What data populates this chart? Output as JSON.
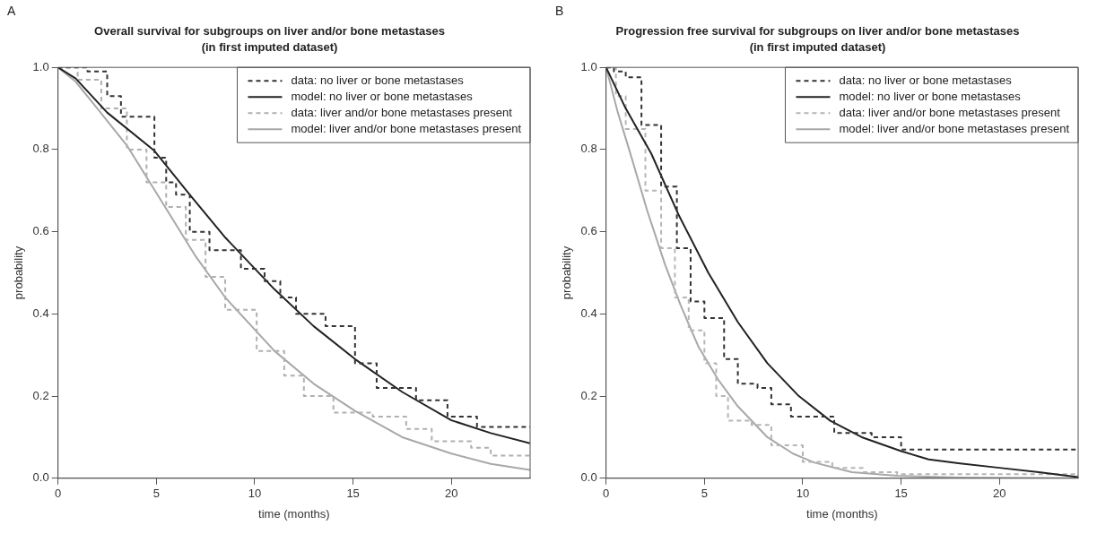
{
  "chart_data": [
    {
      "type": "line",
      "title": "Overall survival for subgroups on liver and/or bone metastases",
      "subtitle": "(in first imputed dataset)",
      "xlabel": "time (months)",
      "ylabel": "probability",
      "annotations": [
        "A"
      ],
      "legend": "top right",
      "grid": false,
      "xlim": [
        0,
        24
      ],
      "ylim": [
        0,
        1
      ],
      "xticks": [
        0,
        5,
        10,
        15,
        20
      ],
      "yticks": [
        {
          "value": 0,
          "label": "0.0"
        },
        {
          "value": 0.2,
          "label": "0.2"
        },
        {
          "value": 0.4,
          "label": "0.4"
        },
        {
          "value": 0.6,
          "label": "0.6"
        },
        {
          "value": 0.8,
          "label": "0.8"
        },
        {
          "value": 1,
          "label": "1.0"
        }
      ],
      "series": [
        {
          "name": "data: no liver or bone metastases",
          "type": "step",
          "line_style": "dashed",
          "color": "#333333",
          "x": [
            0,
            1.5,
            2.5,
            3.2,
            4.9,
            5.5,
            6,
            6.7,
            7.7,
            9.3,
            10.5,
            11.3,
            12.1,
            13.6,
            15.1,
            16.2,
            18.2,
            19.8,
            21.3,
            24
          ],
          "values": [
            1,
            0.99,
            0.93,
            0.88,
            0.78,
            0.72,
            0.69,
            0.6,
            0.555,
            0.51,
            0.48,
            0.44,
            0.4,
            0.37,
            0.28,
            0.22,
            0.19,
            0.15,
            0.125,
            0.125
          ]
        },
        {
          "name": "model: no liver or bone metastases",
          "type": "line",
          "line_style": "solid",
          "color": "#222222",
          "x": [
            0,
            0.9,
            2.5,
            4.9,
            6.7,
            8.5,
            11,
            13,
            15.1,
            17.5,
            20,
            22,
            24
          ],
          "values": [
            1,
            0.973,
            0.89,
            0.797,
            0.69,
            0.586,
            0.46,
            0.37,
            0.29,
            0.21,
            0.141,
            0.11,
            0.085
          ]
        },
        {
          "name": "data: liver and/or bone metastases present",
          "type": "step",
          "line_style": "dashed",
          "color": "#b0b0b0",
          "x": [
            0,
            1,
            2.2,
            3.5,
            4.5,
            5.5,
            6.5,
            7.5,
            8.5,
            10.1,
            11.5,
            12.5,
            14,
            16,
            17.7,
            19,
            21,
            22,
            24
          ],
          "values": [
            1,
            0.97,
            0.9,
            0.8,
            0.72,
            0.66,
            0.58,
            0.49,
            0.41,
            0.31,
            0.25,
            0.2,
            0.16,
            0.15,
            0.12,
            0.09,
            0.074,
            0.055,
            0.05
          ]
        },
        {
          "name": "model: liver and/or bone metastases present",
          "type": "line",
          "line_style": "solid",
          "color": "#a8a8a8",
          "x": [
            0,
            0.9,
            2,
            3.5,
            5.5,
            7,
            8.5,
            11,
            13,
            15.1,
            17.5,
            20,
            22,
            24
          ],
          "values": [
            1,
            0.965,
            0.9,
            0.81,
            0.656,
            0.54,
            0.44,
            0.31,
            0.23,
            0.164,
            0.1,
            0.06,
            0.035,
            0.02
          ]
        }
      ]
    },
    {
      "type": "line",
      "title": "Progression free survival for subgroups on liver and/or bone metastases",
      "subtitle": "(in first imputed dataset)",
      "xlabel": "time (months)",
      "ylabel": "probability",
      "annotations": [
        "B"
      ],
      "legend": "top right",
      "grid": false,
      "xlim": [
        0,
        24
      ],
      "ylim": [
        0,
        1
      ],
      "xticks": [
        0,
        5,
        10,
        15,
        20
      ],
      "yticks": [
        {
          "value": 0,
          "label": "0.0"
        },
        {
          "value": 0.2,
          "label": "0.2"
        },
        {
          "value": 0.4,
          "label": "0.4"
        },
        {
          "value": 0.6,
          "label": "0.6"
        },
        {
          "value": 0.8,
          "label": "0.8"
        },
        {
          "value": 1,
          "label": "1.0"
        }
      ],
      "series": [
        {
          "name": "data: no liver or bone metastases",
          "type": "step",
          "line_style": "dashed",
          "color": "#333333",
          "x": [
            0,
            0.4,
            1,
            1.8,
            2.8,
            3.6,
            4.3,
            5,
            6,
            6.7,
            7.7,
            8.4,
            9.4,
            10.8,
            11.6,
            13.5,
            15,
            24
          ],
          "values": [
            1,
            0.99,
            0.976,
            0.86,
            0.71,
            0.56,
            0.43,
            0.39,
            0.29,
            0.23,
            0.22,
            0.18,
            0.15,
            0.15,
            0.11,
            0.1,
            0.07,
            0.07
          ]
        },
        {
          "name": "model: no liver or bone metastases",
          "type": "line",
          "line_style": "solid",
          "color": "#222222",
          "x": [
            0,
            1,
            2.3,
            3.7,
            5.2,
            6.7,
            8.2,
            9.8,
            11.4,
            13,
            15,
            16.4,
            18,
            19.9,
            22,
            24
          ],
          "values": [
            1,
            0.9,
            0.79,
            0.64,
            0.5,
            0.38,
            0.28,
            0.2,
            0.14,
            0.1,
            0.066,
            0.046,
            0.036,
            0.026,
            0.015,
            0.003
          ]
        },
        {
          "name": "data: liver and/or bone metastases present",
          "type": "step",
          "line_style": "dashed",
          "color": "#b5b5b5",
          "x": [
            0,
            0.5,
            1,
            2,
            2.8,
            3.5,
            4.2,
            5,
            5.6,
            6.2,
            7.4,
            8.4,
            10,
            11.5,
            13.1,
            14.8,
            24
          ],
          "values": [
            1,
            0.93,
            0.85,
            0.7,
            0.56,
            0.44,
            0.36,
            0.28,
            0.2,
            0.14,
            0.13,
            0.08,
            0.04,
            0.025,
            0.015,
            0.01,
            0.005
          ]
        },
        {
          "name": "model: liver and/or bone metastases present",
          "type": "line",
          "line_style": "solid",
          "color": "#a8a8a8",
          "x": [
            0,
            0.6,
            1.3,
            2.1,
            3,
            3.8,
            4.7,
            5.7,
            6.7,
            8.2,
            9.5,
            10.6,
            12.5,
            14.8,
            18,
            24
          ],
          "values": [
            1,
            0.89,
            0.78,
            0.65,
            0.52,
            0.42,
            0.32,
            0.24,
            0.175,
            0.1,
            0.06,
            0.038,
            0.015,
            0.006,
            0.002,
            0
          ]
        }
      ]
    }
  ]
}
